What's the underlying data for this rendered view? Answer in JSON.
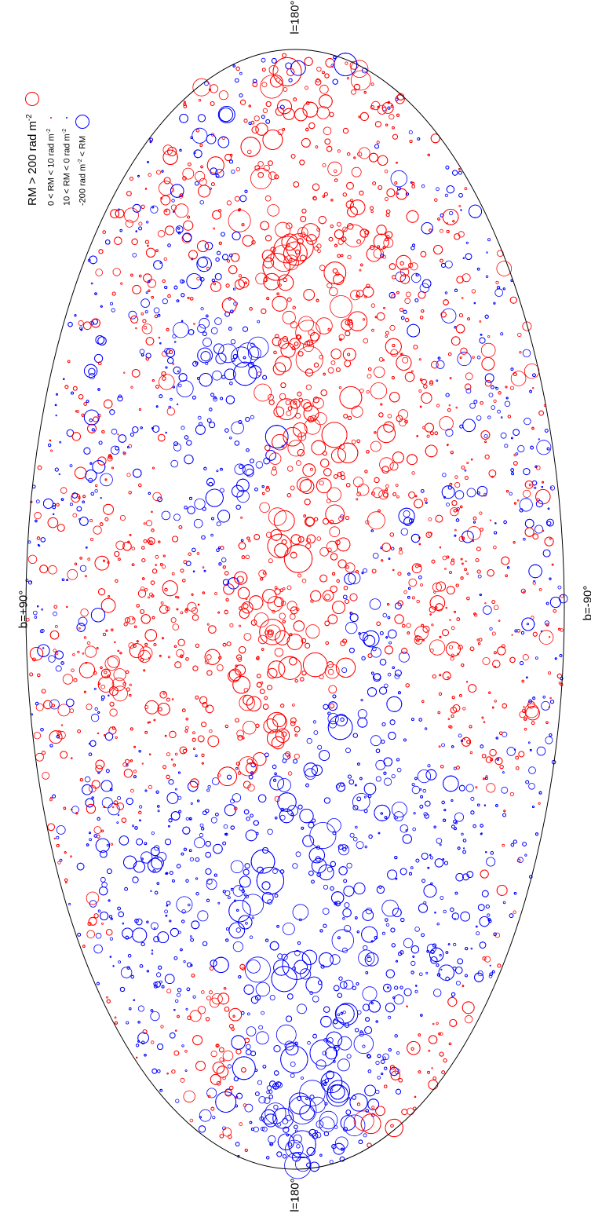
{
  "labels": {
    "top": "l=180°",
    "bottom": "l=180°",
    "left": "b=+90°",
    "right": "b=-90°"
  },
  "legend": [
    {
      "text_main": "RM > 200 rad m",
      "sup": "-2",
      "text_tail": "",
      "color": "#ff0000",
      "marker": "large-open-circle"
    },
    {
      "text_main": "0 < RM < 10 rad m",
      "sup": "-2",
      "text_tail": "",
      "color": "#ff0000",
      "marker": "dot"
    },
    {
      "text_main": "10 < RM < 0 rad m",
      "sup": "-2",
      "text_tail": "",
      "color": "#0000ff",
      "marker": "dot"
    },
    {
      "text_main": "-200 rad m",
      "sup": "-2",
      "text_tail": " < RM",
      "color": "#0000ff",
      "marker": "large-open-circle"
    }
  ],
  "colors": {
    "positive": "#ff0000",
    "negative": "#0000ff",
    "outline": "#000000"
  },
  "chart_data": {
    "type": "scatter",
    "projection": "hammer-aitoff all-sky",
    "marker": "open circle, size proportional to |RM|",
    "series": [
      {
        "name": "RM > 0",
        "color": "#ff0000"
      },
      {
        "name": "RM < 0",
        "color": "#0000ff"
      }
    ]
  }
}
